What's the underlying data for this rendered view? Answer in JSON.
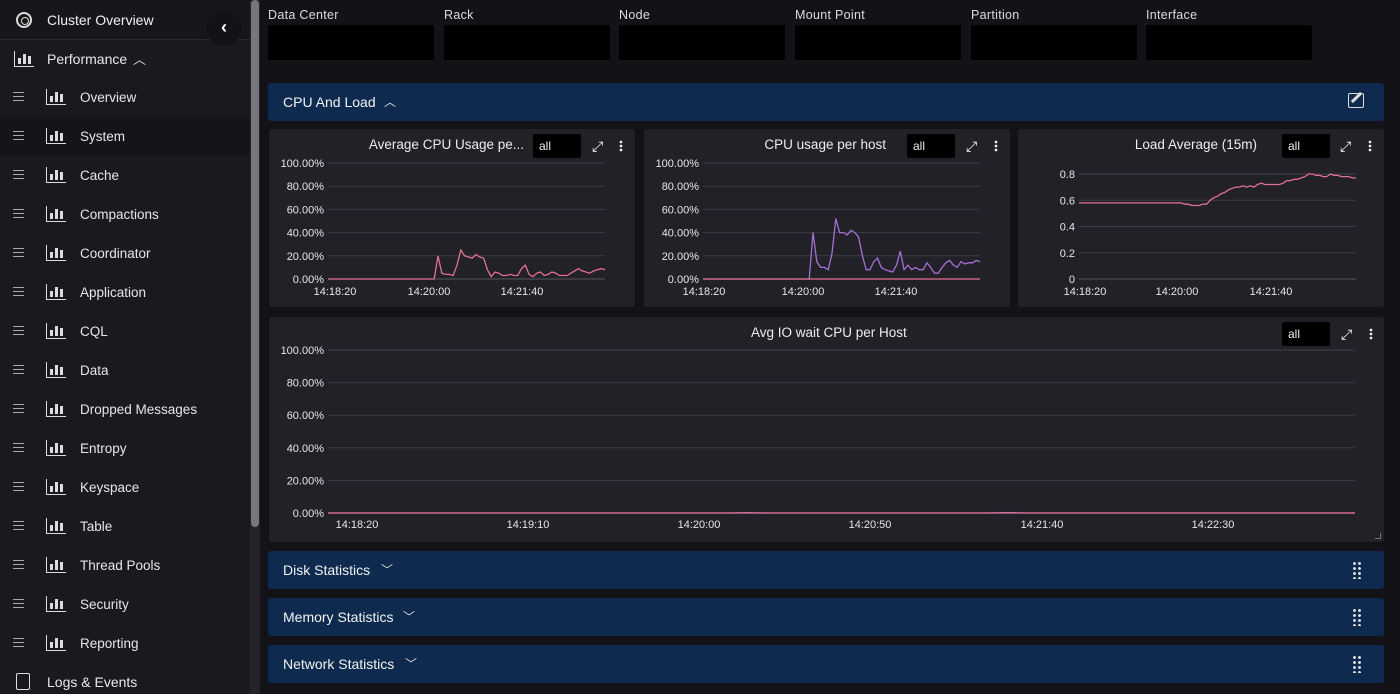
{
  "sidebar": {
    "top": {
      "label": "Cluster Overview"
    },
    "performance": {
      "label": "Performance"
    },
    "items": [
      {
        "label": "Overview"
      },
      {
        "label": "System"
      },
      {
        "label": "Cache"
      },
      {
        "label": "Compactions"
      },
      {
        "label": "Coordinator"
      },
      {
        "label": "Application"
      },
      {
        "label": "CQL"
      },
      {
        "label": "Data"
      },
      {
        "label": "Dropped Messages"
      },
      {
        "label": "Entropy"
      },
      {
        "label": "Keyspace"
      },
      {
        "label": "Table"
      },
      {
        "label": "Thread Pools"
      },
      {
        "label": "Security"
      },
      {
        "label": "Reporting"
      }
    ],
    "active_item": "System",
    "logs": {
      "label": "Logs & Events"
    }
  },
  "filters": [
    {
      "label": "Data Center",
      "value": ""
    },
    {
      "label": "Rack",
      "value": ""
    },
    {
      "label": "Node",
      "value": ""
    },
    {
      "label": "Mount Point",
      "value": ""
    },
    {
      "label": "Partition",
      "value": ""
    },
    {
      "label": "Interface",
      "value": ""
    }
  ],
  "sections": [
    {
      "label": "CPU And Load",
      "expanded": true
    },
    {
      "label": "Disk Statistics",
      "expanded": false
    },
    {
      "label": "Memory Statistics",
      "expanded": false
    },
    {
      "label": "Network Statistics",
      "expanded": false
    }
  ],
  "panels": [
    {
      "title": "Average CPU Usage pe...",
      "selector": "all"
    },
    {
      "title": "CPU usage per host",
      "selector": "all"
    },
    {
      "title": "Load Average (15m)",
      "selector": "all"
    },
    {
      "title": "Avg IO wait CPU per Host",
      "selector": "all"
    }
  ],
  "colors": {
    "sidebar_bg": "#1a191f",
    "section_bg": "#0e2a4f",
    "panel_bg": "#222127",
    "series_pink": "#e2718f",
    "series_purple": "#a36fd6"
  },
  "chart_data": [
    {
      "type": "line",
      "title": "Average CPU Usage pe...",
      "x_ticks": [
        "14:18:20",
        "14:20:00",
        "14:21:40"
      ],
      "y_ticks": [
        "100.00%",
        "80.00%",
        "60.00%",
        "40.00%",
        "20.00%",
        "0.00%"
      ],
      "ylim": [
        0,
        100
      ],
      "grid": true,
      "series": [
        {
          "color": "#e2718f",
          "values": [
            0,
            0,
            0,
            0,
            0,
            0,
            0,
            0,
            0,
            0,
            0,
            0,
            0,
            0,
            0,
            0,
            0,
            0,
            0,
            0,
            0,
            0,
            0,
            0,
            0,
            0,
            0,
            0,
            0,
            20,
            5,
            4,
            4,
            3,
            12,
            25,
            20,
            19,
            18,
            21,
            19,
            18,
            8,
            2,
            6,
            5,
            3,
            3,
            4,
            3,
            3,
            9,
            12,
            4,
            2,
            5,
            6,
            3,
            4,
            6,
            5,
            3,
            3,
            3,
            5,
            7,
            9,
            7,
            6,
            5,
            7,
            8,
            9,
            8
          ]
        }
      ]
    },
    {
      "type": "line",
      "title": "CPU usage per host",
      "x_ticks": [
        "14:18:20",
        "14:20:00",
        "14:21:40"
      ],
      "y_ticks": [
        "100.00%",
        "80.00%",
        "60.00%",
        "40.00%",
        "20.00%",
        "0.00%"
      ],
      "ylim": [
        0,
        100
      ],
      "grid": true,
      "series": [
        {
          "color": "#a36fd6",
          "values": [
            0,
            0,
            0,
            0,
            0,
            0,
            0,
            0,
            0,
            0,
            0,
            0,
            0,
            0,
            0,
            0,
            0,
            0,
            0,
            0,
            0,
            0,
            0,
            0,
            0,
            0,
            0,
            0,
            0,
            40,
            15,
            10,
            10,
            8,
            22,
            52,
            40,
            40,
            38,
            42,
            40,
            36,
            20,
            8,
            8,
            15,
            18,
            10,
            8,
            7,
            6,
            12,
            24,
            8,
            12,
            8,
            10,
            8,
            8,
            14,
            10,
            5,
            5,
            10,
            14,
            16,
            12,
            10,
            15,
            13,
            14,
            14,
            16,
            15
          ]
        },
        {
          "color": "#e2718f",
          "values": [
            0,
            0,
            0,
            0,
            0,
            0,
            0,
            0,
            0,
            0,
            0,
            0,
            0,
            0,
            0,
            0,
            0,
            0,
            0,
            0,
            0,
            0,
            0,
            0,
            0,
            0,
            0,
            0,
            0,
            0,
            0,
            0,
            0,
            0,
            0,
            0,
            0,
            0,
            0,
            0,
            0,
            0,
            0,
            0,
            0,
            0,
            0,
            0,
            0,
            0,
            0,
            0,
            0,
            0,
            0,
            0,
            0,
            0,
            0,
            0,
            0,
            0,
            0,
            0,
            0,
            0,
            0,
            0,
            0,
            0,
            0,
            0,
            0,
            0
          ]
        }
      ]
    },
    {
      "type": "line",
      "title": "Load Average (15m)",
      "x_ticks": [
        "14:18:20",
        "14:20:00",
        "14:21:40"
      ],
      "y_ticks": [
        "0.8",
        "0.6",
        "0.4",
        "0.2",
        "0"
      ],
      "ylim": [
        0,
        0.8
      ],
      "grid": true,
      "series": [
        {
          "color": "#e2718f",
          "values": [
            0.58,
            0.58,
            0.58,
            0.58,
            0.58,
            0.58,
            0.58,
            0.58,
            0.58,
            0.58,
            0.58,
            0.58,
            0.58,
            0.58,
            0.58,
            0.58,
            0.58,
            0.58,
            0.58,
            0.58,
            0.58,
            0.58,
            0.58,
            0.58,
            0.58,
            0.58,
            0.58,
            0.58,
            0.58,
            0.57,
            0.57,
            0.56,
            0.56,
            0.56,
            0.57,
            0.57,
            0.6,
            0.62,
            0.63,
            0.65,
            0.66,
            0.68,
            0.69,
            0.7,
            0.7,
            0.71,
            0.7,
            0.71,
            0.7,
            0.72,
            0.73,
            0.72,
            0.72,
            0.72,
            0.72,
            0.72,
            0.73,
            0.75,
            0.75,
            0.76,
            0.76,
            0.77,
            0.78,
            0.8,
            0.8,
            0.79,
            0.79,
            0.78,
            0.78,
            0.8,
            0.79,
            0.79,
            0.78,
            0.78,
            0.78,
            0.77,
            0.77
          ]
        }
      ]
    },
    {
      "type": "line",
      "title": "Avg IO wait CPU per Host",
      "x_ticks": [
        "14:18:20",
        "14:19:10",
        "14:20:00",
        "14:20:50",
        "14:21:40",
        "14:22:30"
      ],
      "y_ticks": [
        "100.00%",
        "80.00%",
        "60.00%",
        "40.00%",
        "20.00%",
        "0.00%"
      ],
      "ylim": [
        0,
        100
      ],
      "grid": true,
      "series": [
        {
          "color": "#a36fd6",
          "values": [
            0,
            0,
            0,
            0,
            0,
            0,
            0,
            0,
            0,
            0,
            0,
            0,
            0,
            0,
            0,
            0,
            0,
            0,
            0,
            0,
            0,
            0,
            0,
            0,
            0.2,
            0,
            0,
            0,
            0,
            0,
            0,
            0,
            0,
            0,
            0,
            0,
            0,
            0,
            0,
            0.3,
            0,
            0,
            0,
            0,
            0,
            0,
            0,
            0,
            0,
            0,
            0,
            0,
            0,
            0,
            0,
            0,
            0,
            0,
            0,
            0
          ]
        },
        {
          "color": "#e2718f",
          "values": [
            0,
            0,
            0,
            0,
            0,
            0,
            0,
            0,
            0,
            0,
            0,
            0,
            0,
            0,
            0,
            0,
            0,
            0,
            0,
            0,
            0,
            0,
            0,
            0,
            0,
            0,
            0,
            0,
            0,
            0,
            0,
            0,
            0,
            0,
            0,
            0,
            0,
            0,
            0,
            0,
            0,
            0,
            0,
            0,
            0,
            0,
            0,
            0,
            0,
            0,
            0,
            0,
            0,
            0,
            0,
            0,
            0,
            0,
            0,
            0
          ]
        }
      ]
    }
  ]
}
